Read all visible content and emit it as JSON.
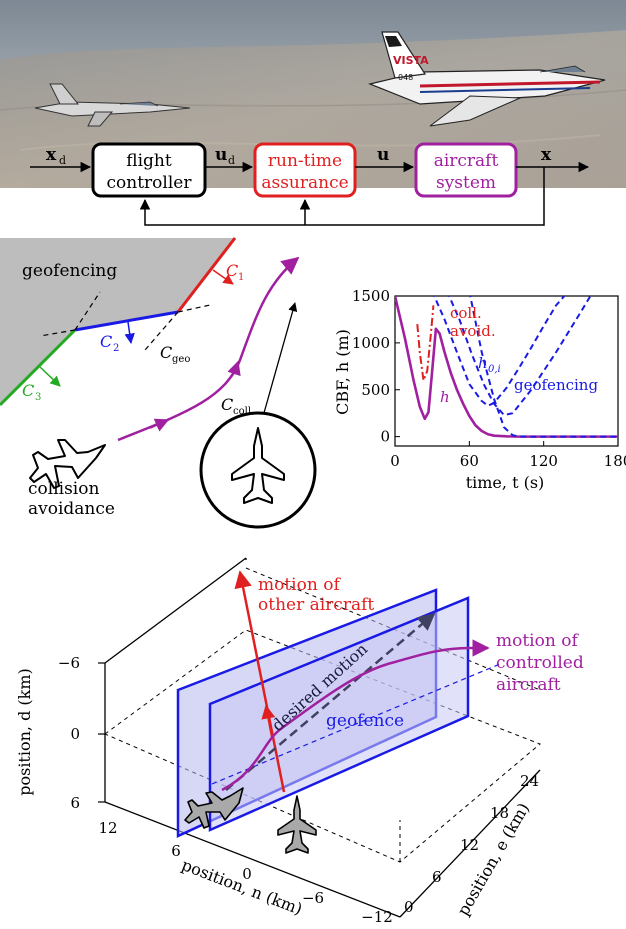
{
  "block_diagram": {
    "signal_xd": "x",
    "signal_xd_sub": "d",
    "signal_ud": "u",
    "signal_ud_sub": "d",
    "signal_u": "u",
    "signal_x": "x",
    "block_flight_controller": [
      "flight",
      "controller"
    ],
    "block_rta": [
      "run-time",
      "assurance"
    ],
    "block_aircraft": [
      "aircraft",
      "system"
    ],
    "aircraft_tail_text": "VISTA",
    "aircraft_tail_number": "048",
    "colors": {
      "controller": "#000000",
      "rta": "#e02020",
      "aircraft": "#a020a0"
    }
  },
  "geofence_sketch": {
    "label_geofencing": "geofencing",
    "label_collision": [
      "collision",
      "avoidance"
    ],
    "c1": "C",
    "c1_sub": "1",
    "c2": "C",
    "c2_sub": "2",
    "c3": "C",
    "c3_sub": "3",
    "c_geo": "C",
    "c_geo_sub": "geo",
    "c_coll": "C",
    "c_coll_sub": "coll",
    "colors": {
      "c1": "#e02020",
      "c2": "#1a1ae6",
      "c3": "#22aa22",
      "path": "#a020a0"
    }
  },
  "cbf_chart": {
    "ylabel": "CBF, h (m)",
    "xlabel": "time, t (s)",
    "label_coll": [
      "coll.",
      "avoid."
    ],
    "label_h0i": "h",
    "label_h0i_sub": "0,i",
    "label_geofencing": "geofencing",
    "label_h": "h"
  },
  "scene3d": {
    "label_other": [
      "motion of",
      "other aircraft"
    ],
    "label_controlled": [
      "motion of",
      "controlled",
      "aircraft"
    ],
    "label_desired": "desired motion",
    "label_geofence": "geofence",
    "axis_d": "position, d (km)",
    "axis_n": "position, n (km)",
    "axis_e": "position, e (km)",
    "d_ticks": [
      "−6",
      "0",
      "6"
    ],
    "n_ticks": [
      "12",
      "6",
      "0",
      "−6",
      "−12"
    ],
    "e_ticks": [
      "0",
      "6",
      "12",
      "18",
      "24"
    ]
  },
  "chart_data": {
    "type": "line",
    "xlabel": "time, t (s)",
    "ylabel": "CBF, h (m)",
    "xlim": [
      0,
      180
    ],
    "ylim": [
      -100,
      1500
    ],
    "xticks": [
      0,
      60,
      120,
      180
    ],
    "yticks": [
      0,
      500,
      1000,
      1500
    ],
    "grid": false,
    "series": [
      {
        "name": "h",
        "style": "solid",
        "color": "#a020a0",
        "x": [
          0,
          8,
          15,
          20,
          24,
          27,
          30,
          33,
          36,
          40,
          45,
          50,
          55,
          60,
          65,
          70,
          75,
          80,
          90,
          100,
          120,
          150,
          180
        ],
        "y": [
          1500,
          1050,
          600,
          320,
          190,
          260,
          700,
          1150,
          1100,
          900,
          680,
          500,
          350,
          220,
          120,
          60,
          25,
          10,
          3,
          0,
          0,
          0,
          0
        ]
      },
      {
        "name": "coll. avoid.",
        "style": "dashdot",
        "color": "#e02020",
        "x": [
          18,
          20,
          23,
          26,
          29,
          31
        ],
        "y": [
          1200,
          900,
          600,
          700,
          1100,
          1400
        ]
      },
      {
        "name": "h0,i",
        "style": "dashed",
        "color": "#1a1ae6",
        "x": [
          30,
          40,
          50,
          60,
          70,
          75,
          80,
          90,
          100,
          110,
          120,
          130,
          140
        ],
        "y": [
          1550,
          1250,
          900,
          560,
          380,
          330,
          360,
          520,
          730,
          950,
          1180,
          1400,
          1550
        ]
      },
      {
        "name": "h0,i",
        "style": "dashed",
        "color": "#1a1ae6",
        "x": [
          42,
          52,
          62,
          72,
          80,
          88,
          95,
          110,
          130,
          150,
          160
        ],
        "y": [
          1550,
          1250,
          880,
          550,
          350,
          230,
          250,
          500,
          900,
          1330,
          1550
        ]
      },
      {
        "name": "geofencing",
        "style": "dashed",
        "color": "#1a1ae6",
        "x": [
          60,
          70,
          80,
          88,
          95,
          100,
          110,
          130,
          160,
          180
        ],
        "y": [
          1550,
          900,
          400,
          100,
          15,
          2,
          0,
          0,
          0,
          0
        ]
      }
    ]
  }
}
